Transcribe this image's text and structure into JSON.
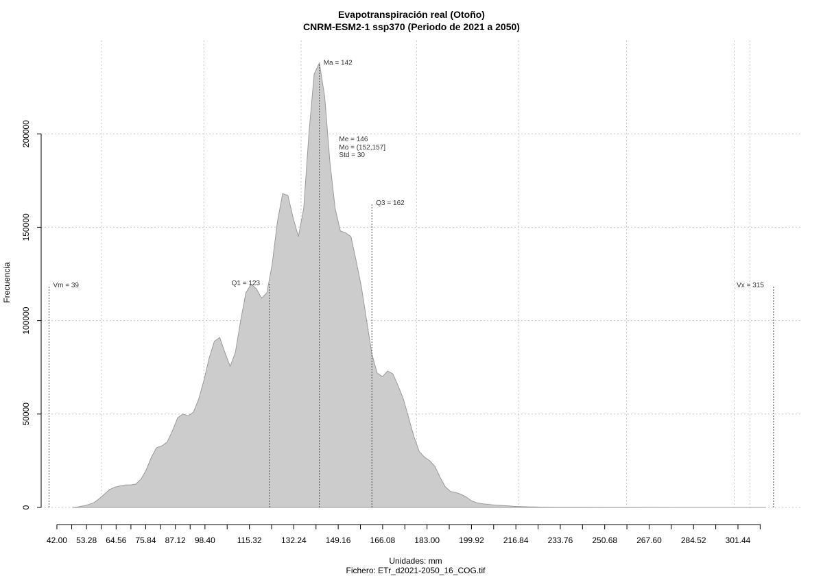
{
  "chart_data": {
    "type": "area",
    "title": "Evapotranspiración real (Otoño)",
    "subtitle": "CNRM-ESM2-1 ssp370 (Periodo de 2021 a 2050)",
    "xlabel": "Unidades: mm",
    "caption": "Fichero: ETr_d2021-2050_16_COG.tif",
    "ylabel": "Frecuencia",
    "xlim": [
      36,
      326
    ],
    "ylim": [
      0,
      250000
    ],
    "x_ticks": [
      42.0,
      53.28,
      64.56,
      75.84,
      87.12,
      98.4,
      115.32,
      132.24,
      149.16,
      166.08,
      183.0,
      199.92,
      216.84,
      233.76,
      250.68,
      267.6,
      284.52,
      301.44
    ],
    "x_tick_labels": [
      "42.00",
      "53.28",
      "64.56",
      "75.84",
      "87.12",
      "98.40",
      "115.32",
      "132.24",
      "149.16",
      "166.08",
      "183.00",
      "199.92",
      "216.84",
      "233.76",
      "250.68",
      "267.60",
      "284.52",
      "301.44"
    ],
    "x_minor_ticks": [
      47.64,
      58.92,
      70.2,
      81.48,
      92.76,
      106.86,
      123.78,
      140.7,
      157.62,
      174.54,
      191.46,
      208.38,
      225.3,
      242.22,
      259.14,
      276.06,
      292.98,
      309.9
    ],
    "y_ticks": [
      0,
      50000,
      100000,
      150000,
      200000
    ],
    "y_tick_labels": [
      "0",
      "50000",
      "100000",
      "150000",
      "200000"
    ],
    "x_grid": [
      59,
      98,
      135,
      179,
      218,
      259,
      300,
      306
    ],
    "grid": true,
    "series": [
      {
        "x": [
          48,
          50,
          52,
          54,
          56,
          58,
          60,
          62,
          64,
          66,
          68,
          70,
          72,
          74,
          76,
          78,
          80,
          82,
          84,
          86,
          88,
          90,
          92,
          94,
          96,
          98,
          100,
          102,
          104,
          106,
          108,
          110,
          112,
          114,
          116,
          118,
          120,
          122,
          124,
          126,
          128,
          130,
          132,
          134,
          136,
          138,
          140,
          142,
          144,
          146,
          148,
          150,
          152,
          154,
          156,
          158,
          160,
          162,
          164,
          166,
          168,
          170,
          172,
          174,
          176,
          178,
          180,
          182,
          184,
          186,
          188,
          190,
          192,
          194,
          196,
          198,
          200,
          202,
          204,
          206,
          208,
          210,
          212,
          214,
          216,
          218,
          220,
          222,
          224,
          226,
          228,
          232,
          236,
          240,
          250,
          260,
          280,
          300,
          312
        ],
        "y": [
          0,
          300,
          800,
          1500,
          2500,
          4500,
          7000,
          9500,
          10800,
          11500,
          12000,
          12000,
          12500,
          15000,
          20000,
          27000,
          32000,
          33000,
          35000,
          41000,
          48000,
          50000,
          49000,
          51000,
          58000,
          68000,
          80000,
          89000,
          91000,
          83000,
          75500,
          83000,
          100000,
          115000,
          119500,
          117000,
          112000,
          115000,
          130000,
          153000,
          168000,
          167000,
          155000,
          145000,
          160000,
          200000,
          232000,
          238000,
          220000,
          185000,
          160000,
          148000,
          147000,
          145000,
          132000,
          118000,
          100000,
          82000,
          72000,
          70000,
          73000,
          71500,
          65000,
          58000,
          48000,
          38000,
          30000,
          27000,
          25000,
          22000,
          16000,
          11000,
          8500,
          8000,
          7000,
          5500,
          3500,
          2500,
          2000,
          1700,
          1400,
          1200,
          1000,
          800,
          600,
          500,
          400,
          300,
          250,
          200,
          150,
          120,
          100,
          80,
          50,
          20,
          10,
          5,
          0
        ]
      }
    ],
    "markers": [
      {
        "x": 39,
        "ymax": 119000,
        "label": "Vm = 39",
        "anchor": "start"
      },
      {
        "x": 123,
        "ymax": 120000,
        "label": "Q1 = 123",
        "anchor": "end"
      },
      {
        "x": 142,
        "ymax": 238000,
        "label": "Ma = 142",
        "anchor": "start"
      },
      {
        "x": 162,
        "ymax": 163000,
        "label": "Q3 = 162",
        "anchor": "start"
      },
      {
        "x": 315,
        "ymax": 119000,
        "label": "Vx = 315",
        "anchor": "end"
      }
    ],
    "stats_box": {
      "x": 149.5,
      "lines": [
        "Me = 146",
        "Mo = (152,157]",
        "Std = 30"
      ]
    },
    "fill_color": "#cccccc",
    "line_color": "#9a9a9a"
  }
}
